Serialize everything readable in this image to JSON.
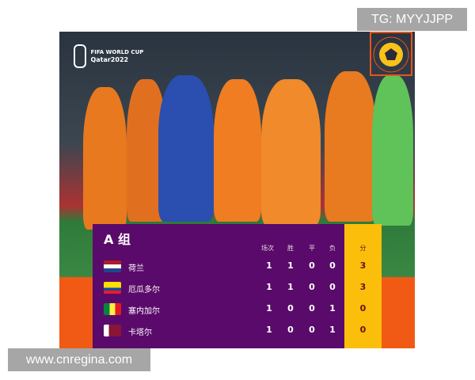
{
  "overlay_tag": "TG: MYYJJPP",
  "watermark": "www.cnregina.com",
  "logo": {
    "line1": "FIFA WORLD CUP",
    "line2": "Qatar2022"
  },
  "table": {
    "title": "A 组",
    "headers": [
      "场次",
      "胜",
      "平",
      "负",
      "分"
    ],
    "rows": [
      {
        "team": "荷兰",
        "flag": "netherlands-flag",
        "p": "1",
        "w": "1",
        "d": "0",
        "l": "0",
        "pts": "3"
      },
      {
        "team": "厄瓜多尔",
        "flag": "ecuador-flag",
        "p": "1",
        "w": "1",
        "d": "0",
        "l": "0",
        "pts": "3"
      },
      {
        "team": "塞内加尔",
        "flag": "senegal-flag",
        "p": "1",
        "w": "0",
        "d": "0",
        "l": "1",
        "pts": "0"
      },
      {
        "team": "卡塔尔",
        "flag": "qatar-flag",
        "p": "1",
        "w": "0",
        "d": "0",
        "l": "1",
        "pts": "0"
      }
    ]
  },
  "colors": {
    "purple": "#5a0a6a",
    "yellow": "#fbbf0b",
    "orange": "#f05a14"
  }
}
